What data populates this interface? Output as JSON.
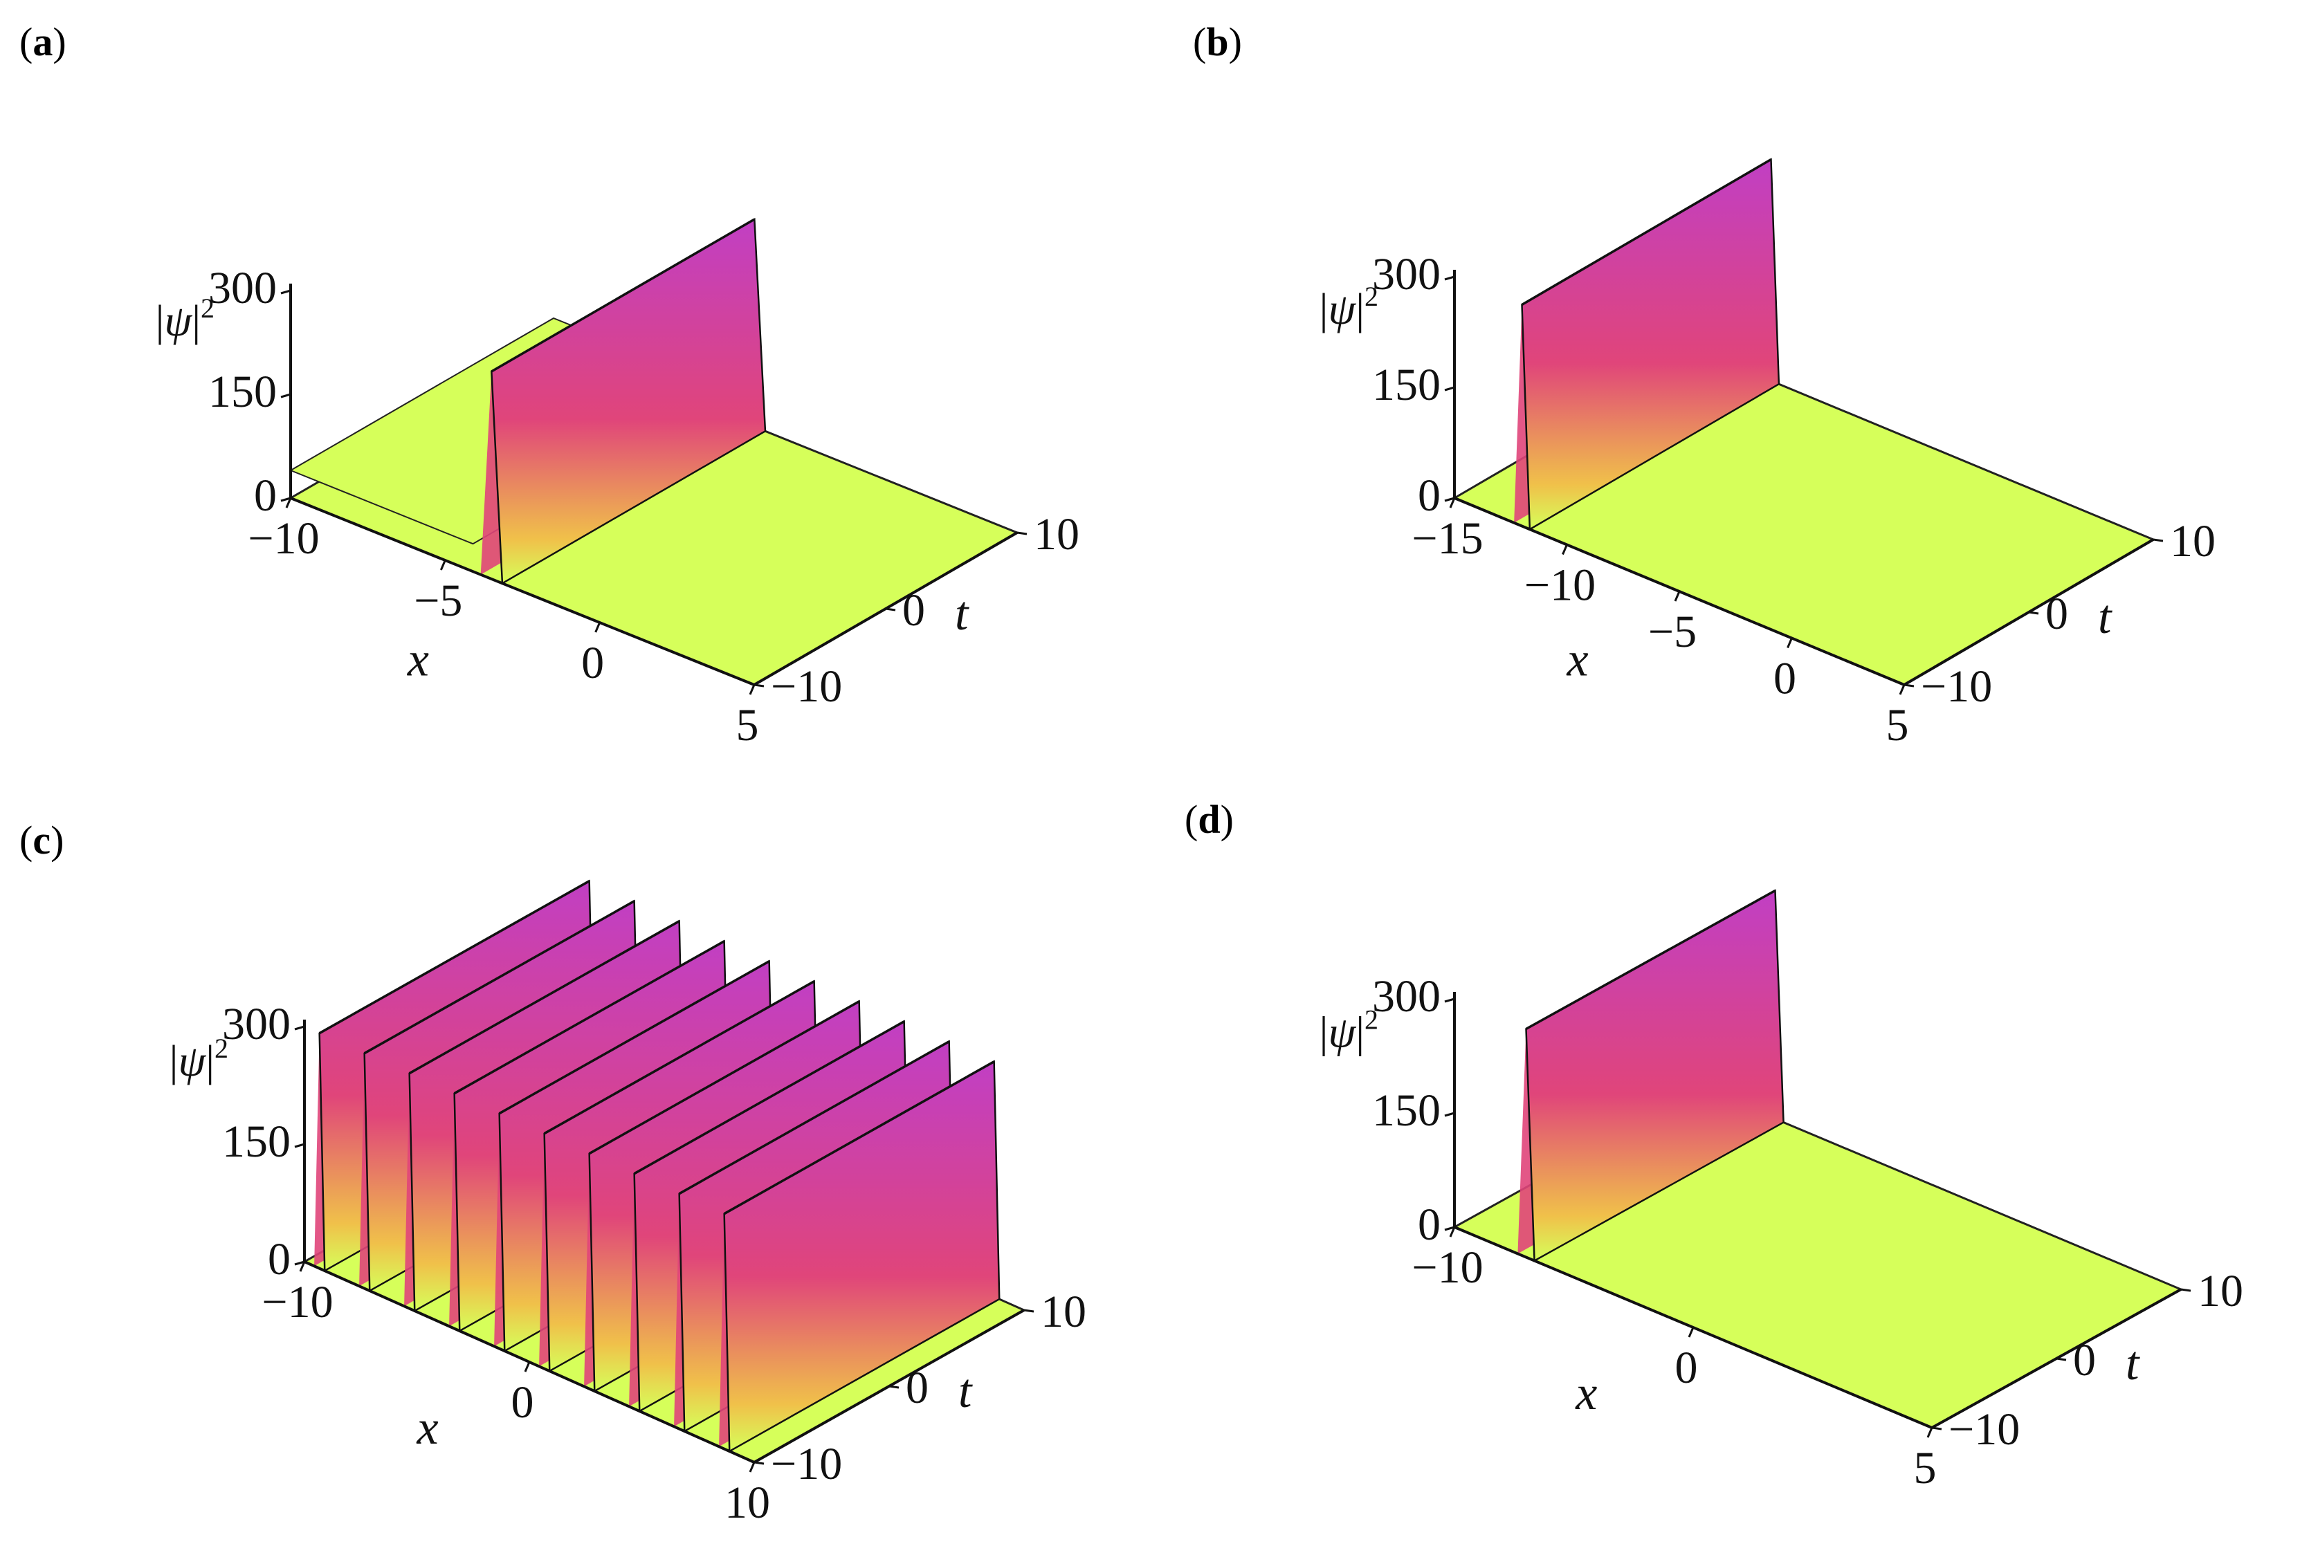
{
  "colors": {
    "floor": "#d6ff5a",
    "floor_dark": "#b9e63e",
    "ridge_top": "#c13fc4",
    "ridge_mid": "#e0457a",
    "ridge_low": "#f0c14a"
  },
  "chart_data": [
    {
      "panel": "(a)",
      "type": "surface3d",
      "xlabel": "x",
      "ylabel": "t",
      "zlabel": "|ψ|",
      "xticks": [
        "−10",
        "−5",
        "0",
        "5"
      ],
      "xrange": [
        -10,
        5
      ],
      "yticks": [
        "−10",
        "0",
        "10"
      ],
      "yrange": [
        -10,
        10
      ],
      "zticks": [
        "0",
        "150",
        "300"
      ],
      "zrange": [
        0,
        300
      ],
      "ridges": [
        {
          "x": -3.5,
          "peak": 300,
          "low_shelf": true
        }
      ]
    },
    {
      "panel": "(b)",
      "type": "surface3d",
      "xlabel": "x",
      "ylabel": "t",
      "zlabel": "|ψ|",
      "xticks": [
        "−15",
        "−10",
        "−5",
        "0",
        "5"
      ],
      "xrange": [
        -15,
        5
      ],
      "yticks": [
        "−10",
        "0",
        "10"
      ],
      "yrange": [
        -10,
        10
      ],
      "zticks": [
        "0",
        "150",
        "300"
      ],
      "zrange": [
        0,
        300
      ],
      "ridges": [
        {
          "x": -12,
          "peak": 300
        }
      ]
    },
    {
      "panel": "(c)",
      "type": "surface3d",
      "xlabel": "x",
      "ylabel": "t",
      "zlabel": "|ψ|",
      "xticks": [
        "−10",
        "0",
        "10"
      ],
      "xrange": [
        -14,
        16
      ],
      "yticks": [
        "−10",
        "0",
        "10"
      ],
      "yrange": [
        -10,
        10
      ],
      "zticks": [
        "0",
        "150",
        "300"
      ],
      "zrange": [
        0,
        300
      ],
      "ridges": [
        {
          "x": -13,
          "peak": 300
        },
        {
          "x": -10,
          "peak": 300
        },
        {
          "x": -7,
          "peak": 300
        },
        {
          "x": -4,
          "peak": 300
        },
        {
          "x": -1,
          "peak": 300
        },
        {
          "x": 2,
          "peak": 300
        },
        {
          "x": 5,
          "peak": 300
        },
        {
          "x": 8,
          "peak": 300
        },
        {
          "x": 11,
          "peak": 300
        },
        {
          "x": 14,
          "peak": 300
        }
      ]
    },
    {
      "panel": "(d)",
      "type": "surface3d",
      "xlabel": "x",
      "ylabel": "t",
      "zlabel": "|ψ|",
      "xticks": [
        "−10",
        "0",
        "5"
      ],
      "xrange": [
        -15,
        5
      ],
      "yticks": [
        "−10",
        "0",
        "10"
      ],
      "yrange": [
        -10,
        10
      ],
      "zticks": [
        "0",
        "150",
        "300"
      ],
      "zrange": [
        0,
        300
      ],
      "ridges": [
        {
          "x": -12,
          "peak": 300
        }
      ]
    }
  ]
}
